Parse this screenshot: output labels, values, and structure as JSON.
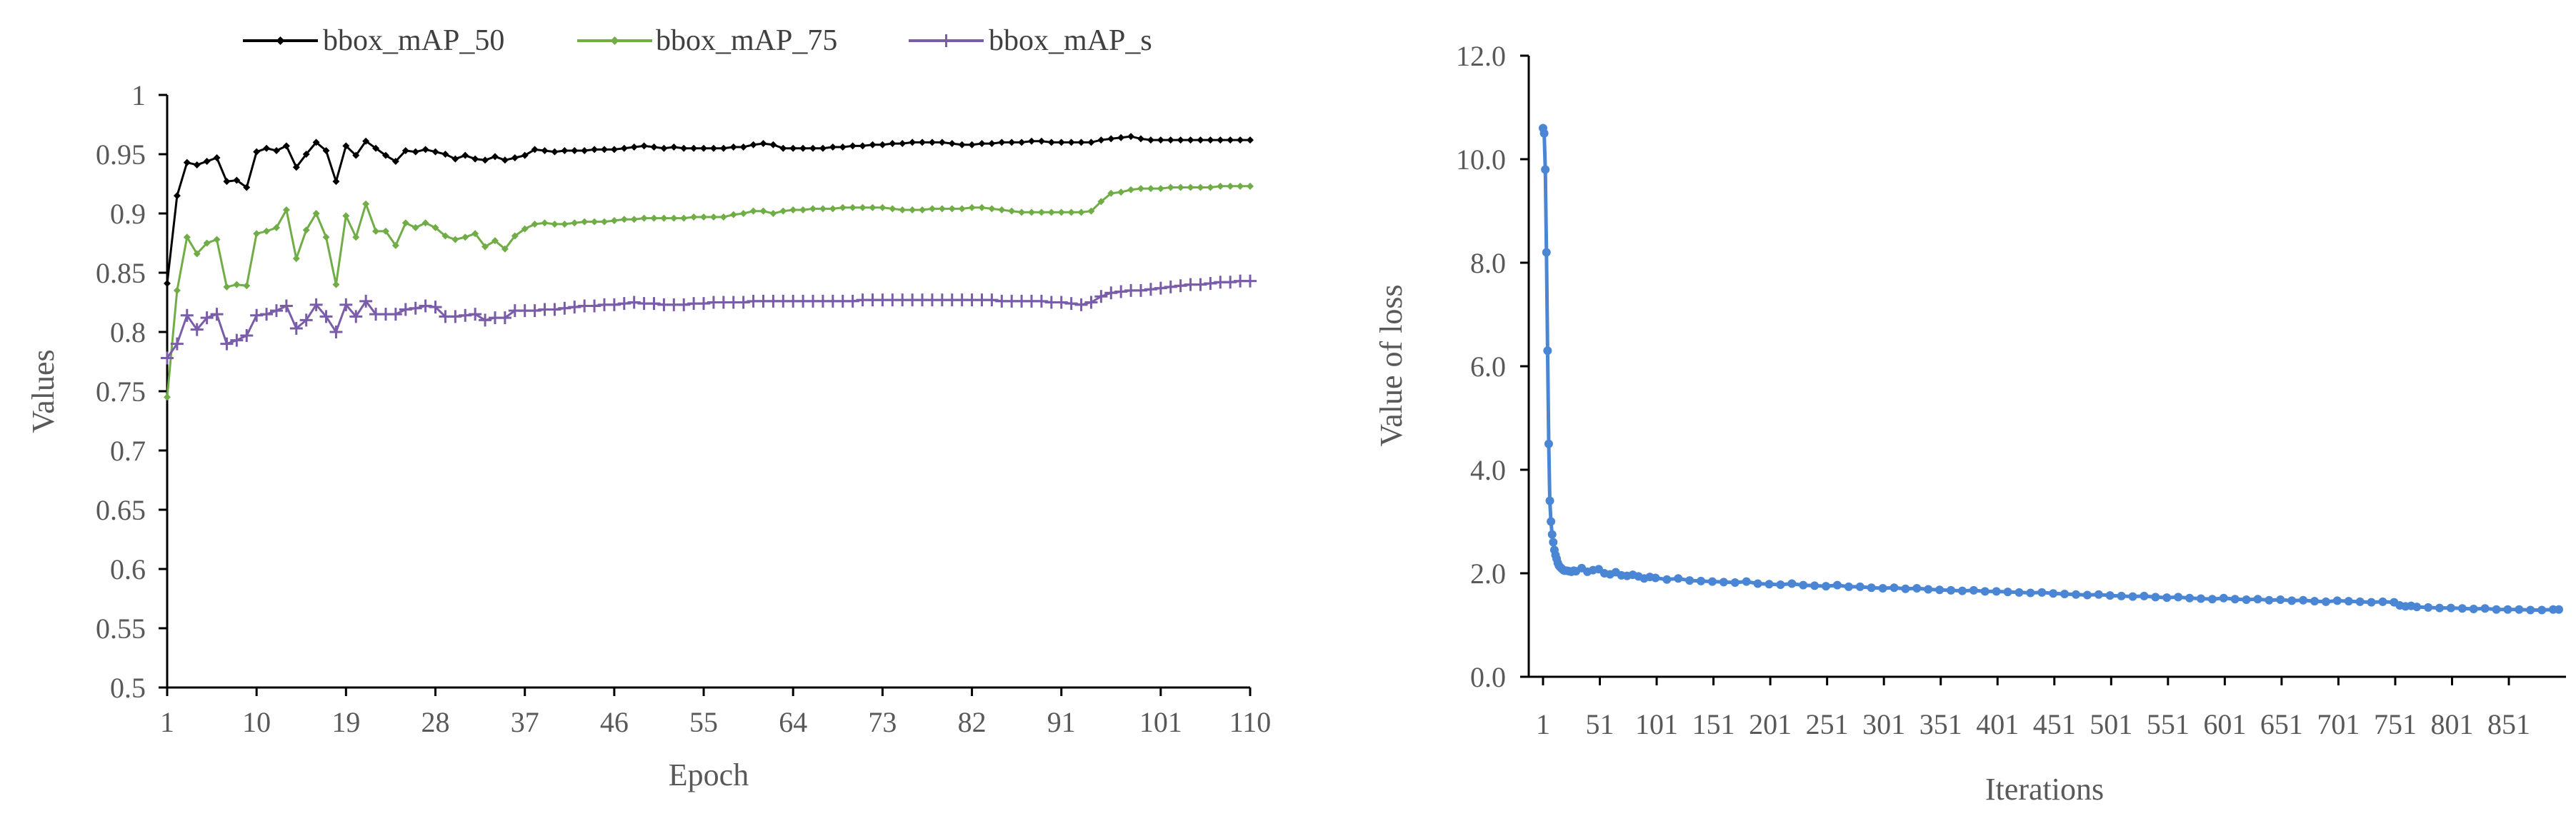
{
  "colors": {
    "map50": "#000000",
    "map75": "#70AD47",
    "maps": "#7A5DA8",
    "loss": "#4A86D4",
    "axis": "#000000",
    "text": "#595959"
  },
  "chart_data": [
    {
      "type": "line",
      "xlabel": "Epoch",
      "ylabel": "Values",
      "ylim": [
        0.5,
        1.0
      ],
      "xlim": [
        1,
        110
      ],
      "y_ticks": [
        "0.5",
        "0.55",
        "0.6",
        "0.65",
        "0.7",
        "0.75",
        "0.8",
        "0.85",
        "0.9",
        "0.95",
        "1"
      ],
      "x_ticks": [
        "1",
        "10",
        "19",
        "28",
        "37",
        "46",
        "55",
        "64",
        "73",
        "82",
        "91",
        "101",
        "110"
      ],
      "legend_position": "top",
      "series": [
        {
          "name": "bbox_mAP_50",
          "marker": "diamond",
          "color": "#000000",
          "values": [
            0.841,
            0.915,
            0.943,
            0.941,
            0.944,
            0.947,
            0.927,
            0.928,
            0.922,
            0.952,
            0.955,
            0.953,
            0.957,
            0.939,
            0.95,
            0.96,
            0.953,
            0.927,
            0.957,
            0.949,
            0.961,
            0.955,
            0.949,
            0.944,
            0.953,
            0.952,
            0.954,
            0.952,
            0.95,
            0.946,
            0.949,
            0.946,
            0.945,
            0.948,
            0.945,
            0.947,
            0.949,
            0.954,
            0.953,
            0.952,
            0.953,
            0.953,
            0.953,
            0.954,
            0.954,
            0.954,
            0.955,
            0.956,
            0.957,
            0.956,
            0.955,
            0.956,
            0.955,
            0.955,
            0.955,
            0.955,
            0.955,
            0.956,
            0.956,
            0.958,
            0.959,
            0.958,
            0.955,
            0.955,
            0.955,
            0.955,
            0.955,
            0.956,
            0.956,
            0.957,
            0.957,
            0.958,
            0.958,
            0.959,
            0.959,
            0.96,
            0.96,
            0.96,
            0.96,
            0.959,
            0.958,
            0.958,
            0.959,
            0.959,
            0.96,
            0.96,
            0.96,
            0.961,
            0.961,
            0.96,
            0.96,
            0.96,
            0.96,
            0.96,
            0.962,
            0.963,
            0.964,
            0.965,
            0.963,
            0.962,
            0.962,
            0.962,
            0.962,
            0.962,
            0.962,
            0.962,
            0.962,
            0.962,
            0.962,
            0.962
          ]
        },
        {
          "name": "bbox_mAP_75",
          "marker": "diamond",
          "color": "#70AD47",
          "values": [
            0.745,
            0.835,
            0.88,
            0.866,
            0.875,
            0.878,
            0.838,
            0.84,
            0.839,
            0.883,
            0.885,
            0.888,
            0.903,
            0.862,
            0.886,
            0.9,
            0.88,
            0.84,
            0.898,
            0.88,
            0.908,
            0.885,
            0.885,
            0.873,
            0.892,
            0.888,
            0.892,
            0.888,
            0.881,
            0.878,
            0.88,
            0.883,
            0.872,
            0.877,
            0.87,
            0.881,
            0.887,
            0.891,
            0.892,
            0.891,
            0.891,
            0.892,
            0.893,
            0.893,
            0.893,
            0.894,
            0.895,
            0.895,
            0.896,
            0.896,
            0.896,
            0.896,
            0.896,
            0.897,
            0.897,
            0.897,
            0.897,
            0.899,
            0.9,
            0.902,
            0.902,
            0.9,
            0.902,
            0.903,
            0.903,
            0.904,
            0.904,
            0.904,
            0.905,
            0.905,
            0.905,
            0.905,
            0.905,
            0.904,
            0.903,
            0.903,
            0.903,
            0.904,
            0.904,
            0.904,
            0.904,
            0.905,
            0.905,
            0.904,
            0.903,
            0.902,
            0.901,
            0.901,
            0.901,
            0.901,
            0.901,
            0.901,
            0.901,
            0.902,
            0.91,
            0.917,
            0.918,
            0.92,
            0.921,
            0.921,
            0.921,
            0.922,
            0.922,
            0.922,
            0.922,
            0.922,
            0.923,
            0.923,
            0.923,
            0.923
          ]
        },
        {
          "name": "bbox_mAP_s",
          "marker": "plus",
          "color": "#7A5DA8",
          "values": [
            0.778,
            0.79,
            0.814,
            0.802,
            0.812,
            0.815,
            0.79,
            0.793,
            0.797,
            0.814,
            0.815,
            0.818,
            0.822,
            0.803,
            0.81,
            0.823,
            0.813,
            0.8,
            0.823,
            0.813,
            0.826,
            0.815,
            0.815,
            0.815,
            0.819,
            0.82,
            0.822,
            0.821,
            0.813,
            0.813,
            0.814,
            0.815,
            0.81,
            0.812,
            0.812,
            0.818,
            0.818,
            0.818,
            0.819,
            0.819,
            0.82,
            0.821,
            0.822,
            0.822,
            0.823,
            0.823,
            0.824,
            0.825,
            0.824,
            0.824,
            0.823,
            0.823,
            0.823,
            0.824,
            0.824,
            0.825,
            0.825,
            0.825,
            0.825,
            0.826,
            0.826,
            0.826,
            0.826,
            0.826,
            0.826,
            0.826,
            0.826,
            0.826,
            0.826,
            0.826,
            0.827,
            0.827,
            0.827,
            0.827,
            0.827,
            0.827,
            0.827,
            0.827,
            0.827,
            0.827,
            0.827,
            0.827,
            0.827,
            0.827,
            0.826,
            0.826,
            0.826,
            0.826,
            0.826,
            0.825,
            0.825,
            0.824,
            0.823,
            0.825,
            0.83,
            0.833,
            0.834,
            0.835,
            0.835,
            0.836,
            0.837,
            0.838,
            0.839,
            0.84,
            0.84,
            0.841,
            0.842,
            0.842,
            0.843,
            0.843
          ]
        }
      ]
    },
    {
      "type": "line",
      "xlabel": "Iterations",
      "ylabel": "Value of loss",
      "ylim": [
        0.0,
        12.0
      ],
      "xlim": [
        1,
        895
      ],
      "y_ticks": [
        "0.0",
        "2.0",
        "4.0",
        "6.0",
        "8.0",
        "10.0",
        "12.0"
      ],
      "x_ticks": [
        "1",
        "51",
        "101",
        "151",
        "201",
        "251",
        "301",
        "351",
        "401",
        "451",
        "501",
        "551",
        "601",
        "651",
        "701",
        "751",
        "801",
        "851"
      ],
      "series": [
        {
          "name": "loss",
          "marker": "circle",
          "color": "#4A86D4",
          "x": [
            1,
            2,
            3,
            4,
            5,
            6,
            7,
            8,
            9,
            10,
            11,
            12,
            13,
            14,
            15,
            16,
            17,
            18,
            19,
            20,
            22,
            24,
            26,
            28,
            30,
            35,
            40,
            45,
            50,
            55,
            60,
            65,
            70,
            75,
            80,
            85,
            90,
            95,
            100,
            110,
            120,
            130,
            140,
            150,
            160,
            170,
            180,
            190,
            200,
            210,
            220,
            230,
            240,
            250,
            260,
            270,
            280,
            290,
            300,
            310,
            320,
            330,
            340,
            350,
            360,
            370,
            380,
            390,
            400,
            410,
            420,
            430,
            440,
            450,
            460,
            470,
            480,
            490,
            500,
            510,
            520,
            530,
            540,
            550,
            560,
            570,
            580,
            590,
            600,
            610,
            620,
            630,
            640,
            650,
            660,
            670,
            680,
            690,
            700,
            710,
            720,
            730,
            740,
            750,
            755,
            760,
            765,
            770,
            780,
            790,
            800,
            810,
            820,
            830,
            840,
            850,
            860,
            870,
            880,
            890,
            895
          ],
          "values": [
            10.6,
            10.5,
            9.8,
            8.2,
            6.3,
            4.5,
            3.4,
            3.0,
            2.75,
            2.6,
            2.45,
            2.35,
            2.28,
            2.2,
            2.15,
            2.12,
            2.1,
            2.08,
            2.06,
            2.05,
            2.05,
            2.04,
            2.03,
            2.05,
            2.04,
            2.1,
            2.03,
            2.06,
            2.08,
            2.0,
            1.98,
            2.02,
            1.96,
            1.95,
            1.97,
            1.94,
            1.9,
            1.93,
            1.91,
            1.88,
            1.9,
            1.86,
            1.85,
            1.84,
            1.83,
            1.82,
            1.84,
            1.8,
            1.79,
            1.78,
            1.8,
            1.77,
            1.76,
            1.75,
            1.77,
            1.74,
            1.74,
            1.72,
            1.71,
            1.72,
            1.7,
            1.71,
            1.69,
            1.68,
            1.67,
            1.66,
            1.67,
            1.65,
            1.65,
            1.64,
            1.63,
            1.62,
            1.63,
            1.61,
            1.6,
            1.59,
            1.58,
            1.59,
            1.57,
            1.56,
            1.55,
            1.56,
            1.54,
            1.53,
            1.54,
            1.52,
            1.51,
            1.5,
            1.52,
            1.5,
            1.49,
            1.5,
            1.48,
            1.49,
            1.47,
            1.48,
            1.46,
            1.45,
            1.47,
            1.46,
            1.45,
            1.44,
            1.45,
            1.44,
            1.38,
            1.36,
            1.37,
            1.35,
            1.34,
            1.33,
            1.33,
            1.32,
            1.31,
            1.32,
            1.3,
            1.3,
            1.3,
            1.29,
            1.29,
            1.3,
            1.3
          ]
        }
      ]
    }
  ]
}
